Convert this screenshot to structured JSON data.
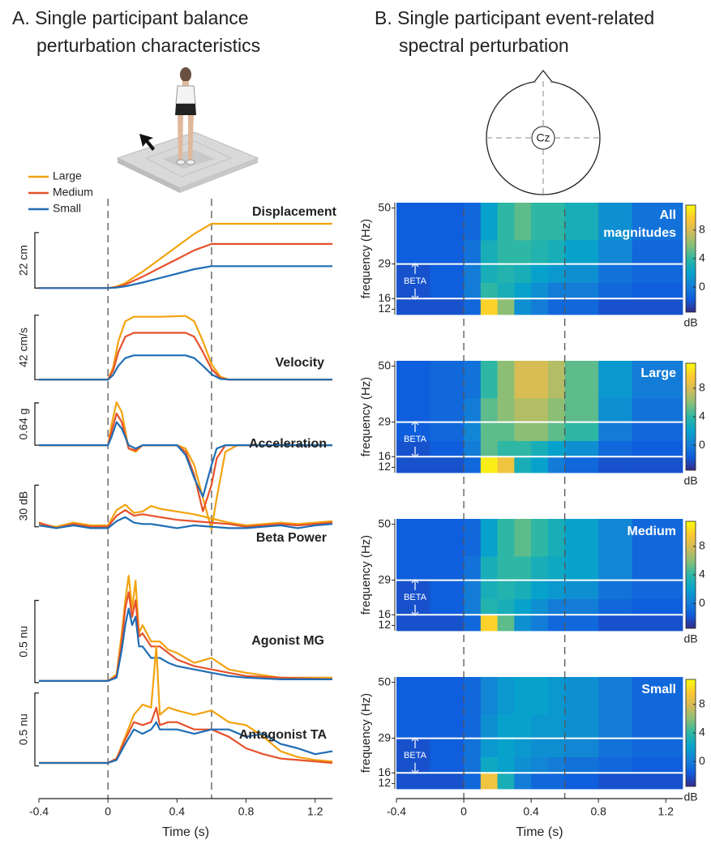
{
  "figure": {
    "head_label": "Cz"
  },
  "chart_data": [
    {
      "type": "line_stack",
      "title": [
        "A. Single participant balance",
        "perturbation characteristics"
      ],
      "xlabel": "Time (s)",
      "xlim": [
        -0.4,
        1.3
      ],
      "xticks": [
        -0.4,
        0,
        0.4,
        0.8,
        1.2
      ],
      "vlines": [
        0,
        0.6
      ],
      "series": [
        {
          "name": "Large",
          "color": "#f2a30f"
        },
        {
          "name": "Medium",
          "color": "#e5522b"
        },
        {
          "name": "Small",
          "color": "#1f6db4"
        }
      ],
      "subplots": [
        {
          "title": "Displacement",
          "scalebar": {
            "value": 22,
            "label": "22 cm"
          },
          "ylim": [
            -1.5,
            30
          ],
          "x": [
            -0.4,
            0,
            0.05,
            0.1,
            0.2,
            0.3,
            0.4,
            0.5,
            0.6,
            0.65,
            1.3
          ],
          "values": [
            [
              0,
              0,
              0.6,
              2,
              6.5,
              11.5,
              16.5,
              21.5,
              25.5,
              25.5,
              25.5
            ],
            [
              0,
              0,
              0.4,
              1.4,
              4.5,
              8,
              11.5,
              15,
              17.5,
              17.5,
              17.5
            ],
            [
              0,
              0,
              0.2,
              0.7,
              2.2,
              4,
              5.7,
              7.5,
              8.7,
              8.7,
              8.7
            ]
          ]
        },
        {
          "title": "Velocity",
          "scalebar": {
            "value": 42,
            "label": "42 cm/s"
          },
          "ylim": [
            -2,
            44
          ],
          "x": [
            -0.4,
            0,
            0.03,
            0.06,
            0.1,
            0.15,
            0.3,
            0.45,
            0.5,
            0.55,
            0.6,
            0.65,
            0.7,
            1.3
          ],
          "values": [
            [
              0,
              0,
              8,
              25,
              38,
              41,
              41,
              41.5,
              38,
              25,
              10,
              2,
              0,
              0
            ],
            [
              0,
              0,
              6,
              18,
              28,
              30.5,
              30.5,
              30.5,
              28,
              18,
              7,
              1,
              0,
              0
            ],
            [
              0,
              0,
              3,
              9,
              14,
              15.8,
              15.8,
              15.8,
              14,
              9,
              3.5,
              0.5,
              0,
              0
            ]
          ]
        },
        {
          "title": "Acceleration",
          "scalebar": {
            "value": 0.64,
            "label": "0.64 g"
          },
          "ylim": [
            -1.3,
            0.75
          ],
          "x": [
            -0.4,
            0,
            0.02,
            0.05,
            0.08,
            0.12,
            0.16,
            0.2,
            0.3,
            0.4,
            0.45,
            0.5,
            0.55,
            0.6,
            0.63,
            0.68,
            0.75,
            1.3
          ],
          "values": [
            [
              0,
              0,
              0.3,
              0.65,
              0.5,
              -0.05,
              -0.1,
              0,
              0,
              0,
              -0.05,
              -0.3,
              -0.8,
              -1.27,
              -0.8,
              -0.1,
              0,
              0
            ],
            [
              0,
              0,
              0.2,
              0.48,
              0.35,
              -0.05,
              -0.08,
              0,
              0,
              0,
              -0.1,
              -0.45,
              -1.0,
              -0.6,
              -0.2,
              0,
              0,
              0
            ],
            [
              0,
              0,
              0.12,
              0.35,
              0.25,
              0,
              -0.05,
              0,
              0,
              0,
              -0.15,
              -0.5,
              -0.78,
              -0.3,
              -0.05,
              0,
              0,
              0
            ]
          ]
        },
        {
          "title": "Beta Power",
          "scalebar": {
            "value": 30,
            "label": "30 dB"
          },
          "ylim": [
            -6,
            32
          ],
          "x": [
            -0.4,
            -0.3,
            -0.2,
            -0.1,
            0,
            0.05,
            0.1,
            0.15,
            0.2,
            0.25,
            0.3,
            0.4,
            0.5,
            0.6,
            0.7,
            0.8,
            0.9,
            1.0,
            1.1,
            1.2,
            1.3
          ],
          "values": [
            [
              2,
              0,
              3,
              1,
              1,
              12,
              16,
              10,
              11,
              15,
              13,
              11,
              9,
              6,
              3,
              1,
              2,
              3,
              2,
              3,
              4
            ],
            [
              3,
              -1,
              2,
              0,
              0,
              8,
              12,
              8,
              9,
              8,
              7,
              5,
              4,
              3,
              2,
              0,
              1,
              2,
              1,
              2,
              3
            ],
            [
              1,
              -1,
              1,
              -1,
              -1,
              4,
              7,
              3,
              2,
              2,
              1,
              -1,
              1,
              0,
              -1,
              -1,
              0,
              1,
              -1,
              1,
              2
            ]
          ]
        },
        {
          "title": "Agonist MG",
          "scalebar": {
            "value": 0.5,
            "label": "0.5 nu"
          },
          "ylim": [
            -0.03,
            0.7
          ],
          "x": [
            -0.4,
            -0.2,
            0,
            0.05,
            0.08,
            0.1,
            0.12,
            0.14,
            0.16,
            0.18,
            0.2,
            0.25,
            0.3,
            0.35,
            0.4,
            0.5,
            0.6,
            0.7,
            0.8,
            1.0,
            1.3
          ],
          "values": [
            [
              0.01,
              0.01,
              0.01,
              0.05,
              0.3,
              0.5,
              0.65,
              0.45,
              0.62,
              0.3,
              0.35,
              0.25,
              0.25,
              0.2,
              0.18,
              0.12,
              0.15,
              0.08,
              0.06,
              0.03,
              0.03
            ],
            [
              0.01,
              0.01,
              0.01,
              0.04,
              0.25,
              0.45,
              0.55,
              0.4,
              0.5,
              0.28,
              0.3,
              0.22,
              0.22,
              0.18,
              0.14,
              0.1,
              0.08,
              0.06,
              0.04,
              0.03,
              0.02
            ],
            [
              0.01,
              0.01,
              0.01,
              0.03,
              0.2,
              0.35,
              0.45,
              0.35,
              0.4,
              0.22,
              0.22,
              0.15,
              0.15,
              0.12,
              0.1,
              0.08,
              0.06,
              0.04,
              0.03,
              0.02,
              0.02
            ]
          ]
        },
        {
          "title": "Antagonist TA",
          "scalebar": {
            "value": 0.5,
            "label": "0.5 nu"
          },
          "ylim": [
            -0.03,
            0.86
          ],
          "x": [
            -0.4,
            -0.2,
            0,
            0.05,
            0.1,
            0.15,
            0.2,
            0.25,
            0.28,
            0.3,
            0.35,
            0.4,
            0.5,
            0.6,
            0.7,
            0.8,
            0.9,
            1.0,
            1.1,
            1.2,
            1.3
          ],
          "values": [
            [
              0.02,
              0.02,
              0.02,
              0.05,
              0.2,
              0.35,
              0.42,
              0.4,
              0.82,
              0.35,
              0.4,
              0.38,
              0.35,
              0.38,
              0.3,
              0.28,
              0.2,
              0.1,
              0.06,
              0.04,
              0.03
            ],
            [
              0.02,
              0.02,
              0.02,
              0.05,
              0.18,
              0.3,
              0.28,
              0.3,
              0.4,
              0.28,
              0.3,
              0.3,
              0.25,
              0.25,
              0.2,
              0.12,
              0.08,
              0.05,
              0.04,
              0.03,
              0.02
            ],
            [
              0.02,
              0.02,
              0.02,
              0.04,
              0.15,
              0.25,
              0.22,
              0.25,
              0.3,
              0.25,
              0.25,
              0.25,
              0.22,
              0.25,
              0.25,
              0.2,
              0.22,
              0.15,
              0.12,
              0.08,
              0.1
            ]
          ]
        }
      ]
    },
    {
      "type": "heatmap_stack",
      "title": [
        "B. Single participant event-related",
        "spectral perturbation"
      ],
      "xlabel": "Time (s)",
      "ylabel": "frequency (Hz)",
      "zlabel": "dB",
      "xlim": [
        -0.4,
        1.3
      ],
      "xticks": [
        -0.4,
        0,
        0.4,
        0.8,
        1.2
      ],
      "vlines": [
        0,
        0.6
      ],
      "ylim": [
        10,
        52
      ],
      "yticks": [
        12,
        16,
        29,
        50
      ],
      "zlim": [
        -3.5,
        11.5
      ],
      "zticks": [
        0,
        4,
        8
      ],
      "colormap": [
        "#352a87",
        "#0f5cdd",
        "#1481d6",
        "#06a4ca",
        "#2eb7a4",
        "#87bf77",
        "#d1bb59",
        "#fec832",
        "#f9fb0e"
      ],
      "band": {
        "label": "BETA",
        "range": [
          16,
          29
        ]
      },
      "x_edges": [
        -0.4,
        -0.2,
        0,
        0.1,
        0.2,
        0.3,
        0.4,
        0.5,
        0.6,
        0.8,
        1.0,
        1.3
      ],
      "y_edges": [
        10,
        16,
        22,
        29,
        38,
        52
      ],
      "subplots": [
        {
          "title": [
            "All",
            "magnitudes"
          ],
          "z": [
            [
              -2,
              -2,
              -1,
              10,
              6,
              1,
              0,
              -1,
              -1,
              -2,
              -2
            ],
            [
              -2,
              -1.5,
              0,
              4,
              3,
              2,
              1,
              0,
              0,
              -1,
              -1.5
            ],
            [
              -2,
              -1.5,
              0,
              3,
              3.5,
              3,
              2,
              1.5,
              1,
              -0.5,
              -1
            ],
            [
              -1.5,
              -1.5,
              -0.5,
              3,
              4,
              4,
              3.5,
              3,
              2,
              0.5,
              -1
            ],
            [
              -1.5,
              -1.5,
              -1,
              2,
              4,
              5,
              4,
              4,
              3,
              1,
              -0.5
            ]
          ]
        },
        {
          "title": [
            "Large"
          ],
          "z": [
            [
              -2,
              -2,
              -1,
              11,
              9,
              3,
              2,
              0,
              -1,
              -2,
              -2
            ],
            [
              -2,
              -1.5,
              0,
              5,
              4,
              4,
              3,
              2,
              1,
              -1,
              -1.5
            ],
            [
              -1.5,
              -1,
              0.5,
              5,
              5,
              6,
              6,
              5,
              4,
              0,
              -1
            ],
            [
              -1.5,
              -1,
              0,
              5,
              6,
              7,
              7,
              6,
              5,
              1,
              -0.5
            ],
            [
              -1.5,
              -1,
              -0.5,
              4,
              6,
              8,
              8,
              7,
              5,
              1.5,
              0
            ]
          ]
        },
        {
          "title": [
            "Medium"
          ],
          "z": [
            [
              -2,
              -2,
              -1,
              10,
              5,
              1,
              0,
              -1,
              -1,
              -2,
              -2
            ],
            [
              -2,
              -1.5,
              0,
              3.5,
              3,
              2,
              1,
              0,
              0,
              -1,
              -1.5
            ],
            [
              -2,
              -1.5,
              0,
              3,
              3.5,
              3,
              2,
              1.5,
              1,
              -0.5,
              -1
            ],
            [
              -1.5,
              -1.5,
              -0.5,
              3,
              4,
              4,
              3,
              2.5,
              2,
              0.5,
              -1
            ],
            [
              -1.5,
              -1.5,
              -1,
              2,
              4,
              5,
              4,
              3,
              2,
              0.5,
              -1
            ]
          ]
        },
        {
          "title": [
            "Small"
          ],
          "z": [
            [
              -2,
              -2,
              -1,
              9,
              3,
              0,
              -1,
              -1,
              -1.5,
              -2,
              -2
            ],
            [
              -2,
              -1.5,
              -0.5,
              2.5,
              2,
              1,
              0.5,
              0,
              -0.5,
              -1,
              -1.5
            ],
            [
              -2,
              -1.5,
              -0.5,
              1.5,
              2,
              1.5,
              1,
              1,
              0.5,
              -0.5,
              -1
            ],
            [
              -1.5,
              -1.5,
              -1,
              1,
              2,
              2,
              1.5,
              1.5,
              1,
              0,
              -1
            ],
            [
              -1.5,
              -1.5,
              -1,
              0.5,
              1.5,
              2,
              2,
              1.5,
              1,
              0,
              -1
            ]
          ]
        }
      ]
    }
  ]
}
